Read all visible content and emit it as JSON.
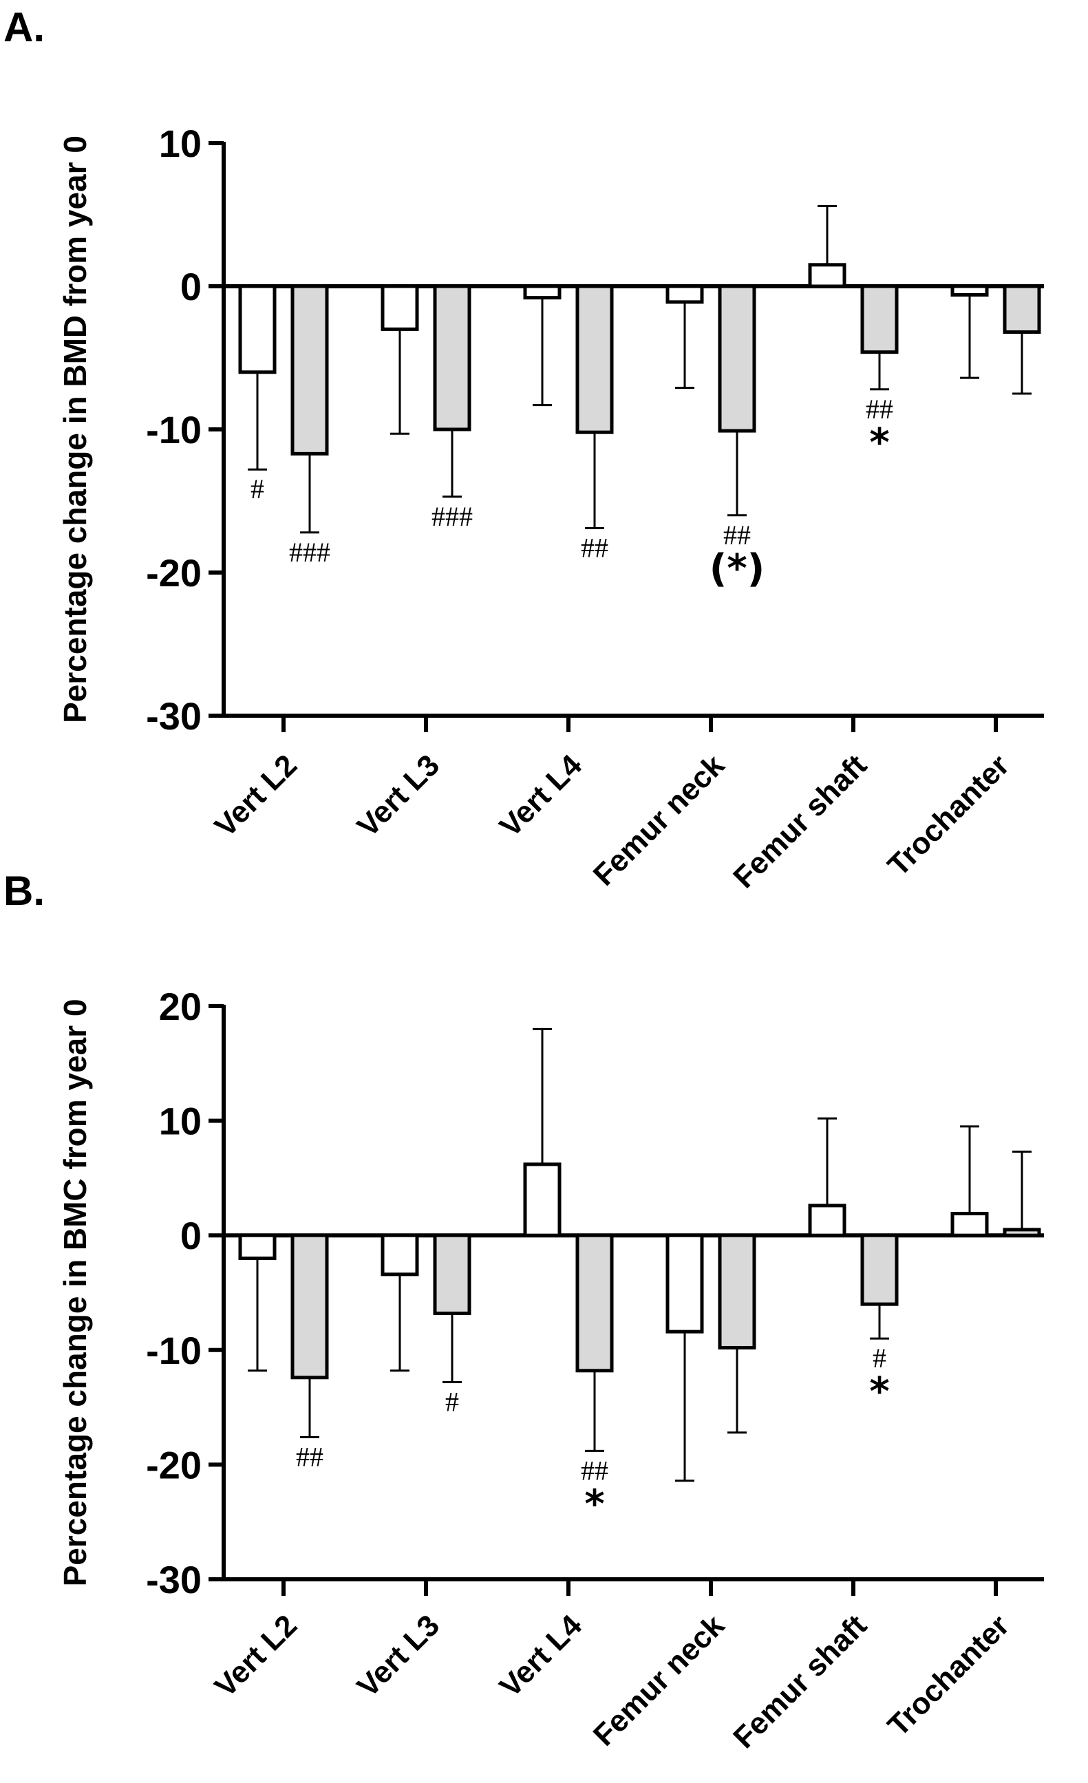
{
  "chart_data": [
    {
      "type": "bar",
      "panel_label": "A.",
      "ylabel": "Percentage change in BMD from year 0",
      "xlabel": "",
      "ylim": [
        -30,
        10
      ],
      "yticks": [
        10,
        0,
        -10,
        -20,
        -30
      ],
      "yticklabels": [
        "10",
        "0",
        "-10",
        "-20",
        "-30"
      ],
      "categories": [
        "Vert L2",
        "Vert L3",
        "Vert L4",
        "Femur neck",
        "Femur shaft",
        "Trochanter"
      ],
      "series": [
        {
          "name": "open",
          "color": "#ffffff",
          "values": [
            -6.0,
            -3.0,
            -0.8,
            -1.1,
            1.5,
            -0.6
          ],
          "error": [
            6.8,
            7.3,
            7.5,
            6.0,
            4.1,
            5.8
          ],
          "annotations": [
            [
              "#"
            ],
            [],
            [],
            [],
            [],
            []
          ]
        },
        {
          "name": "grey",
          "color": "#d9d9d9",
          "values": [
            -11.7,
            -10.0,
            -10.2,
            -10.1,
            -4.6,
            -3.2
          ],
          "error": [
            5.5,
            4.7,
            6.7,
            5.9,
            2.6,
            4.3
          ],
          "annotations": [
            [
              "###"
            ],
            [
              "###"
            ],
            [
              "##"
            ],
            [
              "##",
              "(*)"
            ],
            [
              "##",
              "*"
            ],
            []
          ]
        }
      ]
    },
    {
      "type": "bar",
      "panel_label": "B.",
      "ylabel": "Percentage change in BMC from year 0",
      "xlabel": "",
      "ylim": [
        -30,
        20
      ],
      "yticks": [
        20,
        10,
        0,
        -10,
        -20,
        -30
      ],
      "yticklabels": [
        "20",
        "10",
        "0",
        "-10",
        "-20",
        "-30"
      ],
      "categories": [
        "Vert L2",
        "Vert L3",
        "Vert L4",
        "Femur neck",
        "Femur shaft",
        "Trochanter"
      ],
      "series": [
        {
          "name": "open",
          "color": "#ffffff",
          "values": [
            -2.0,
            -3.4,
            6.2,
            -8.4,
            2.6,
            1.9
          ],
          "error": [
            9.8,
            8.4,
            11.8,
            13.0,
            7.6,
            7.6
          ],
          "annotations": [
            [],
            [],
            [],
            [],
            [],
            []
          ]
        },
        {
          "name": "grey",
          "color": "#d9d9d9",
          "values": [
            -12.4,
            -6.8,
            -11.8,
            -9.8,
            -6.0,
            0.5
          ],
          "error": [
            5.2,
            6.0,
            7.0,
            7.4,
            3.0,
            6.8
          ],
          "annotations": [
            [
              "##"
            ],
            [
              "#"
            ],
            [
              "##",
              "*"
            ],
            [],
            [
              "#",
              "*"
            ],
            []
          ]
        }
      ]
    }
  ]
}
